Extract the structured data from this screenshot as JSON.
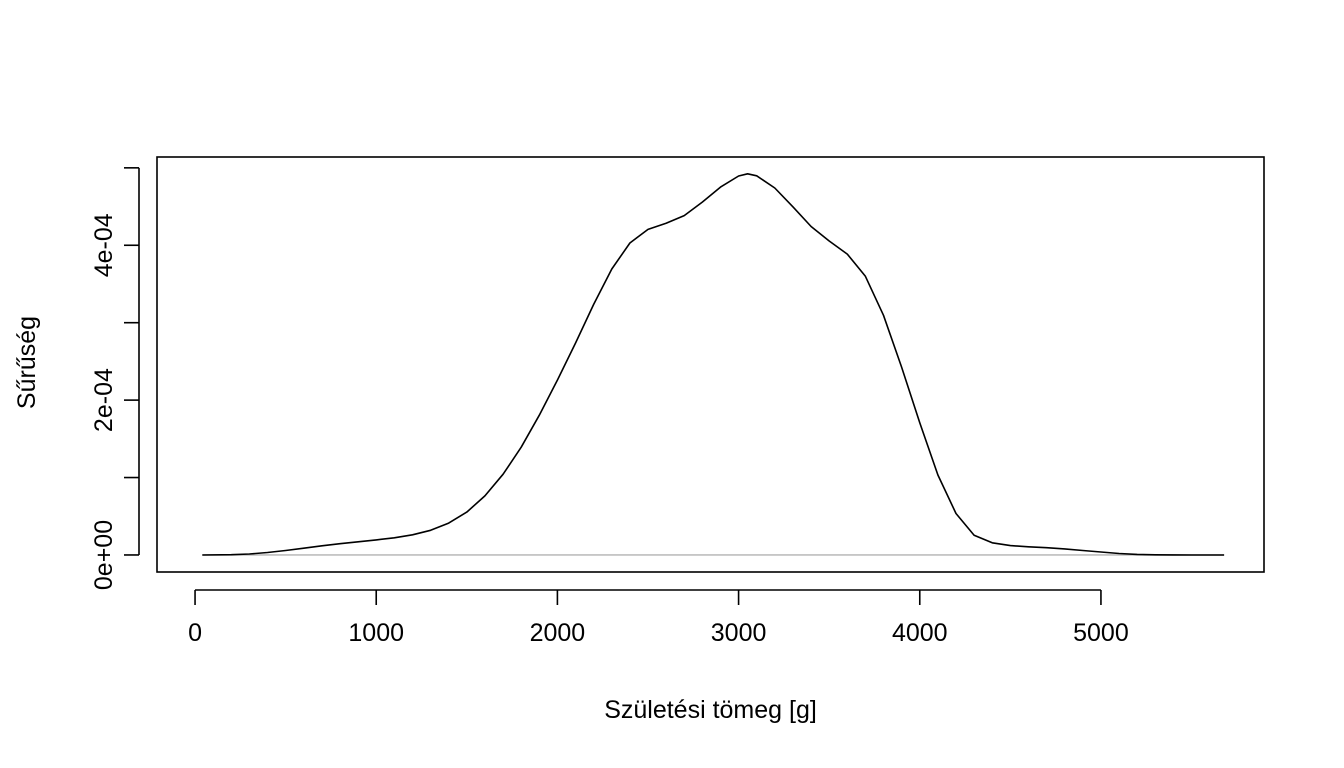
{
  "chart_data": {
    "type": "line",
    "title": "",
    "xlabel": "Születési tömeg [g]",
    "ylabel": "Sűrűség",
    "xlim": [
      -210,
      5900
    ],
    "ylim": [
      -2.2e-05,
      0.000514
    ],
    "x_ticks": [
      {
        "value": 0,
        "label": "0"
      },
      {
        "value": 1000,
        "label": "1000"
      },
      {
        "value": 2000,
        "label": "2000"
      },
      {
        "value": 3000,
        "label": "3000"
      },
      {
        "value": 4000,
        "label": "4000"
      },
      {
        "value": 5000,
        "label": "5000"
      }
    ],
    "y_ticks": [
      0,
      0.0001,
      0.0002,
      0.0003,
      0.0004,
      0.0005
    ],
    "y_tick_labels": [
      {
        "value": 0,
        "label": "0e+00"
      },
      {
        "value": 0.0002,
        "label": "2e-04"
      },
      {
        "value": 0.0004,
        "label": "4e-04"
      }
    ],
    "baseline": 0,
    "colors": {
      "line": "#000000",
      "baseline": "#bebebe",
      "frame": "#000000"
    },
    "series": [
      {
        "x": [
          40,
          200,
          300,
          400,
          500,
          600,
          700,
          800,
          900,
          1000,
          1100,
          1200,
          1300,
          1400,
          1500,
          1600,
          1700,
          1800,
          1900,
          2000,
          2100,
          2200,
          2300,
          2400,
          2500,
          2600,
          2700,
          2800,
          2900,
          3000,
          3050,
          3100,
          3200,
          3300,
          3400,
          3500,
          3600,
          3700,
          3800,
          3900,
          4000,
          4100,
          4200,
          4300,
          4400,
          4500,
          4600,
          4700,
          4800,
          4900,
          5000,
          5100,
          5200,
          5300,
          5400,
          5500,
          5600,
          5680
        ],
        "y": [
          0,
          3e-07,
          1.3e-06,
          3.2e-06,
          5.8e-06,
          8.8e-06,
          1.18e-05,
          1.45e-05,
          1.7e-05,
          1.94e-05,
          2.22e-05,
          2.6e-05,
          3.18e-05,
          4.12e-05,
          5.54e-05,
          7.63e-05,
          0.0001043,
          0.0001392,
          0.0001805,
          0.0002258,
          0.0002737,
          0.0003235,
          0.0003693,
          0.0004029,
          0.0004205,
          0.0004285,
          0.0004383,
          0.0004557,
          0.0004751,
          0.0004895,
          0.0004923,
          0.0004897,
          0.0004739,
          0.0004497,
          0.0004242,
          0.0004055,
          0.0003886,
          0.0003599,
          0.0003096,
          0.0002426,
          0.0001706,
          0.0001033,
          5.36e-05,
          2.54e-05,
          1.57e-05,
          1.21e-05,
          1.06e-05,
          9.4e-06,
          7.8e-06,
          5.8e-06,
          3.8e-06,
          1.9e-06,
          7e-07,
          2e-07,
          1e-07,
          0,
          0,
          0
        ]
      }
    ]
  }
}
